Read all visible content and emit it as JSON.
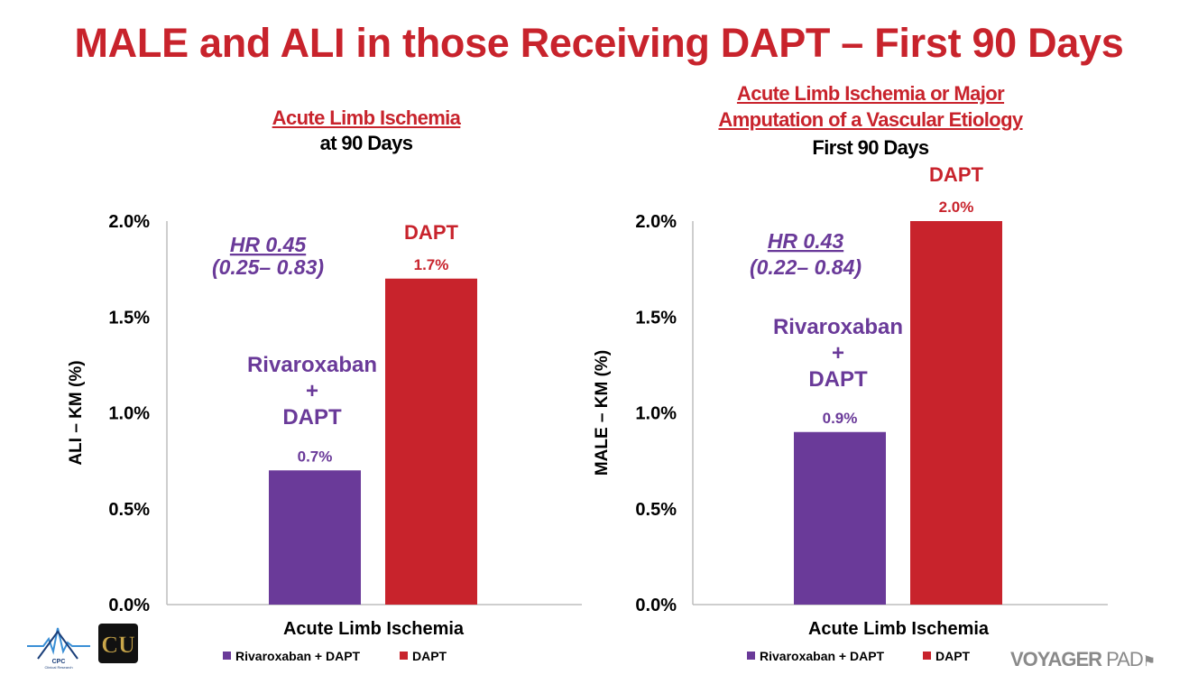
{
  "title": "MALE and ALI in those Receiving DAPT – First 90 Days",
  "colors": {
    "rivaroxaban": "#6a3a99",
    "dapt": "#c8232c",
    "title": "#c8232c"
  },
  "chart_data": [
    {
      "type": "bar",
      "subtitle_underlined": [
        "Acute Limb Ischemia"
      ],
      "subtitle": "at 90 Days",
      "ylabel": "ALI – KM (%)",
      "xlabel": "Acute Limb Ischemia",
      "ylim": [
        0,
        2.0
      ],
      "yticks": [
        "0.0%",
        "0.5%",
        "1.0%",
        "1.5%",
        "2.0%"
      ],
      "yticks_values": [
        0,
        0.5,
        1.0,
        1.5,
        2.0
      ],
      "categories": [
        "Acute Limb Ischemia"
      ],
      "series": [
        {
          "name": "Rivaroxaban + DAPT",
          "values": [
            0.7
          ],
          "data_label": "0.7%",
          "bar_label": [
            "Rivaroxaban",
            "+",
            "DAPT"
          ]
        },
        {
          "name": "DAPT",
          "values": [
            1.7
          ],
          "data_label": "1.7%",
          "bar_label": [
            "DAPT"
          ]
        }
      ],
      "hr": [
        "HR 0.45",
        "(0.25– 0.83)"
      ],
      "legend": [
        "Rivaroxaban + DAPT",
        "DAPT"
      ]
    },
    {
      "type": "bar",
      "subtitle_underlined": [
        "Acute Limb Ischemia or Major",
        "Amputation of a Vascular Etiology"
      ],
      "subtitle": "First 90 Days",
      "ylabel": "MALE – KM (%)",
      "xlabel": "Acute Limb Ischemia",
      "ylim": [
        0,
        2.0
      ],
      "yticks": [
        "0.0%",
        "0.5%",
        "1.0%",
        "1.5%",
        "2.0%"
      ],
      "yticks_values": [
        0,
        0.5,
        1.0,
        1.5,
        2.0
      ],
      "categories": [
        "Acute Limb Ischemia"
      ],
      "series": [
        {
          "name": "Rivaroxaban + DAPT",
          "values": [
            0.9
          ],
          "data_label": "0.9%",
          "bar_label": [
            "Rivaroxaban",
            "+",
            "DAPT"
          ]
        },
        {
          "name": "DAPT",
          "values": [
            2.0
          ],
          "data_label": "2.0%",
          "bar_label": [
            "DAPT"
          ]
        }
      ],
      "hr": [
        "HR 0.43",
        "(0.22– 0.84)"
      ],
      "legend": [
        "Rivaroxaban + DAPT",
        "DAPT"
      ]
    }
  ],
  "logos": {
    "cpc_main": "CPC",
    "cpc_sub": "Clinical Research",
    "cu": "CU"
  },
  "brand": {
    "voyager": "VOYAGER",
    "pad": "PAD"
  }
}
